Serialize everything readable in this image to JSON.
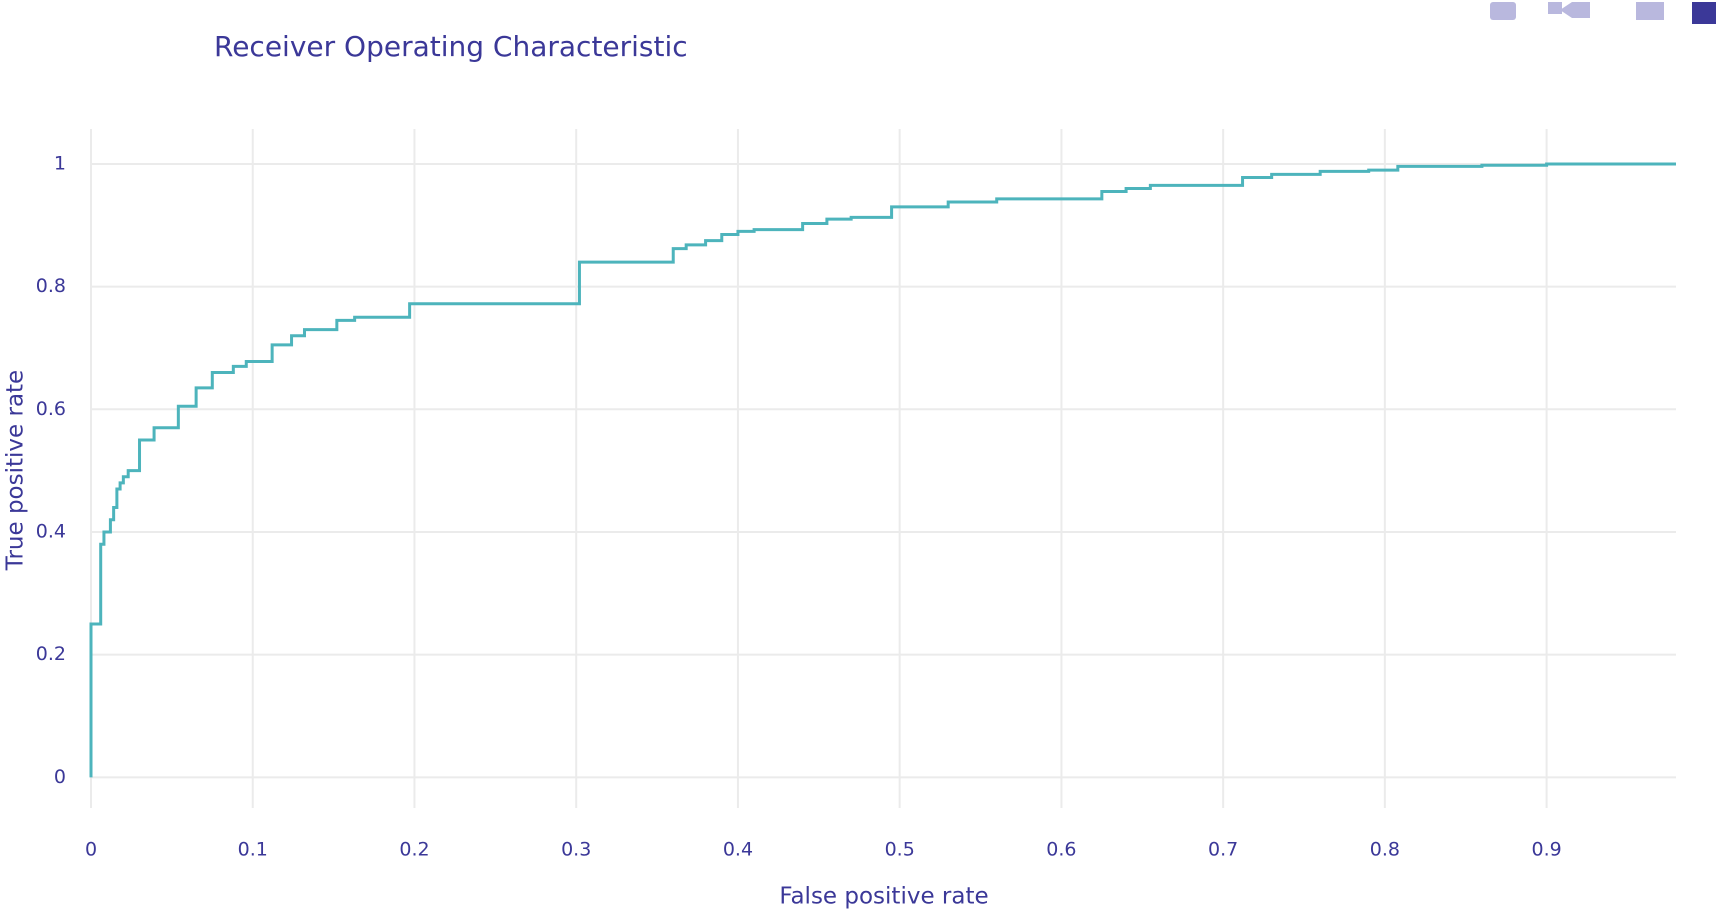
{
  "chart_data": {
    "type": "line",
    "title": "Receiver Operating Characteristic",
    "x_label": "False positive rate",
    "y_label": "True positive rate",
    "x": [
      0,
      0,
      0.006,
      0.006,
      0.008,
      0.008,
      0.012,
      0.012,
      0.014,
      0.014,
      0.016,
      0.016,
      0.018,
      0.018,
      0.02,
      0.02,
      0.023,
      0.023,
      0.03,
      0.03,
      0.039,
      0.039,
      0.054,
      0.054,
      0.065,
      0.065,
      0.075,
      0.075,
      0.088,
      0.088,
      0.096,
      0.096,
      0.112,
      0.112,
      0.124,
      0.124,
      0.132,
      0.132,
      0.152,
      0.152,
      0.163,
      0.163,
      0.197,
      0.197,
      0.302,
      0.302,
      0.36,
      0.36,
      0.368,
      0.368,
      0.38,
      0.38,
      0.39,
      0.39,
      0.4,
      0.4,
      0.41,
      0.41,
      0.44,
      0.44,
      0.455,
      0.455,
      0.47,
      0.47,
      0.495,
      0.495,
      0.53,
      0.53,
      0.56,
      0.56,
      0.625,
      0.625,
      0.64,
      0.64,
      0.655,
      0.655,
      0.712,
      0.712,
      0.73,
      0.73,
      0.76,
      0.76,
      0.79,
      0.79,
      0.808,
      0.808,
      0.86,
      0.86,
      0.9,
      0.9,
      0.98
    ],
    "series": [
      {
        "color": "#4db4bc",
        "values": [
          0,
          0.25,
          0.25,
          0.38,
          0.38,
          0.4,
          0.4,
          0.42,
          0.42,
          0.44,
          0.44,
          0.47,
          0.47,
          0.48,
          0.48,
          0.49,
          0.49,
          0.5,
          0.5,
          0.55,
          0.55,
          0.57,
          0.57,
          0.605,
          0.605,
          0.635,
          0.635,
          0.66,
          0.66,
          0.67,
          0.67,
          0.678,
          0.678,
          0.705,
          0.705,
          0.72,
          0.72,
          0.73,
          0.73,
          0.745,
          0.745,
          0.75,
          0.75,
          0.772,
          0.772,
          0.84,
          0.84,
          0.862,
          0.862,
          0.868,
          0.868,
          0.875,
          0.875,
          0.885,
          0.885,
          0.89,
          0.89,
          0.893,
          0.893,
          0.903,
          0.903,
          0.91,
          0.91,
          0.913,
          0.913,
          0.93,
          0.93,
          0.938,
          0.938,
          0.943,
          0.943,
          0.955,
          0.955,
          0.96,
          0.96,
          0.965,
          0.965,
          0.978,
          0.978,
          0.983,
          0.983,
          0.988,
          0.988,
          0.99,
          0.99,
          0.996,
          0.996,
          0.998,
          0.998,
          1,
          1
        ]
      }
    ],
    "xlim": [
      0,
      0.98
    ],
    "ylim": [
      -0.05,
      1.057
    ],
    "xticks": [
      0,
      0.1,
      0.2,
      0.3,
      0.4,
      0.5,
      0.6,
      0.7,
      0.8,
      0.9
    ],
    "yticks": [
      0,
      0.2,
      0.4,
      0.6,
      0.8,
      1
    ],
    "grid": true
  }
}
